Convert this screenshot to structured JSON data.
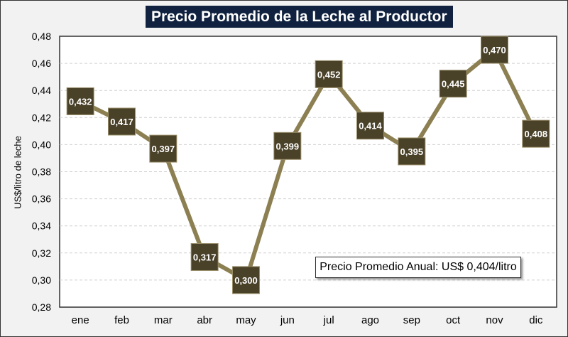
{
  "chart_data": {
    "type": "line",
    "title": "Precio Promedio de la Leche al Productor",
    "xlabel": "",
    "ylabel": "US$/litro de leche",
    "categories": [
      "ene",
      "feb",
      "mar",
      "abr",
      "may",
      "jun",
      "jul",
      "ago",
      "sep",
      "oct",
      "nov",
      "dic"
    ],
    "values": [
      0.432,
      0.417,
      0.397,
      0.317,
      0.3,
      0.399,
      0.452,
      0.414,
      0.395,
      0.445,
      0.47,
      0.408
    ],
    "data_labels": [
      "0,432",
      "0,417",
      "0,397",
      "0,317",
      "0,300",
      "0,399",
      "0,452",
      "0,414",
      "0,395",
      "0,445",
      "0,470",
      "0,408"
    ],
    "ylim": [
      0.28,
      0.48
    ],
    "yticks": [
      "0,28",
      "0,30",
      "0,32",
      "0,34",
      "0,36",
      "0,38",
      "0,40",
      "0,42",
      "0,44",
      "0,46",
      "0,48"
    ],
    "grid": "horizontal dashed",
    "annotation": "Precio Promedio Anual: US$ 0,404/litro",
    "colors": {
      "line": "#8c7f52",
      "marker": "#4a4129",
      "title_bg": "#10223f"
    }
  }
}
